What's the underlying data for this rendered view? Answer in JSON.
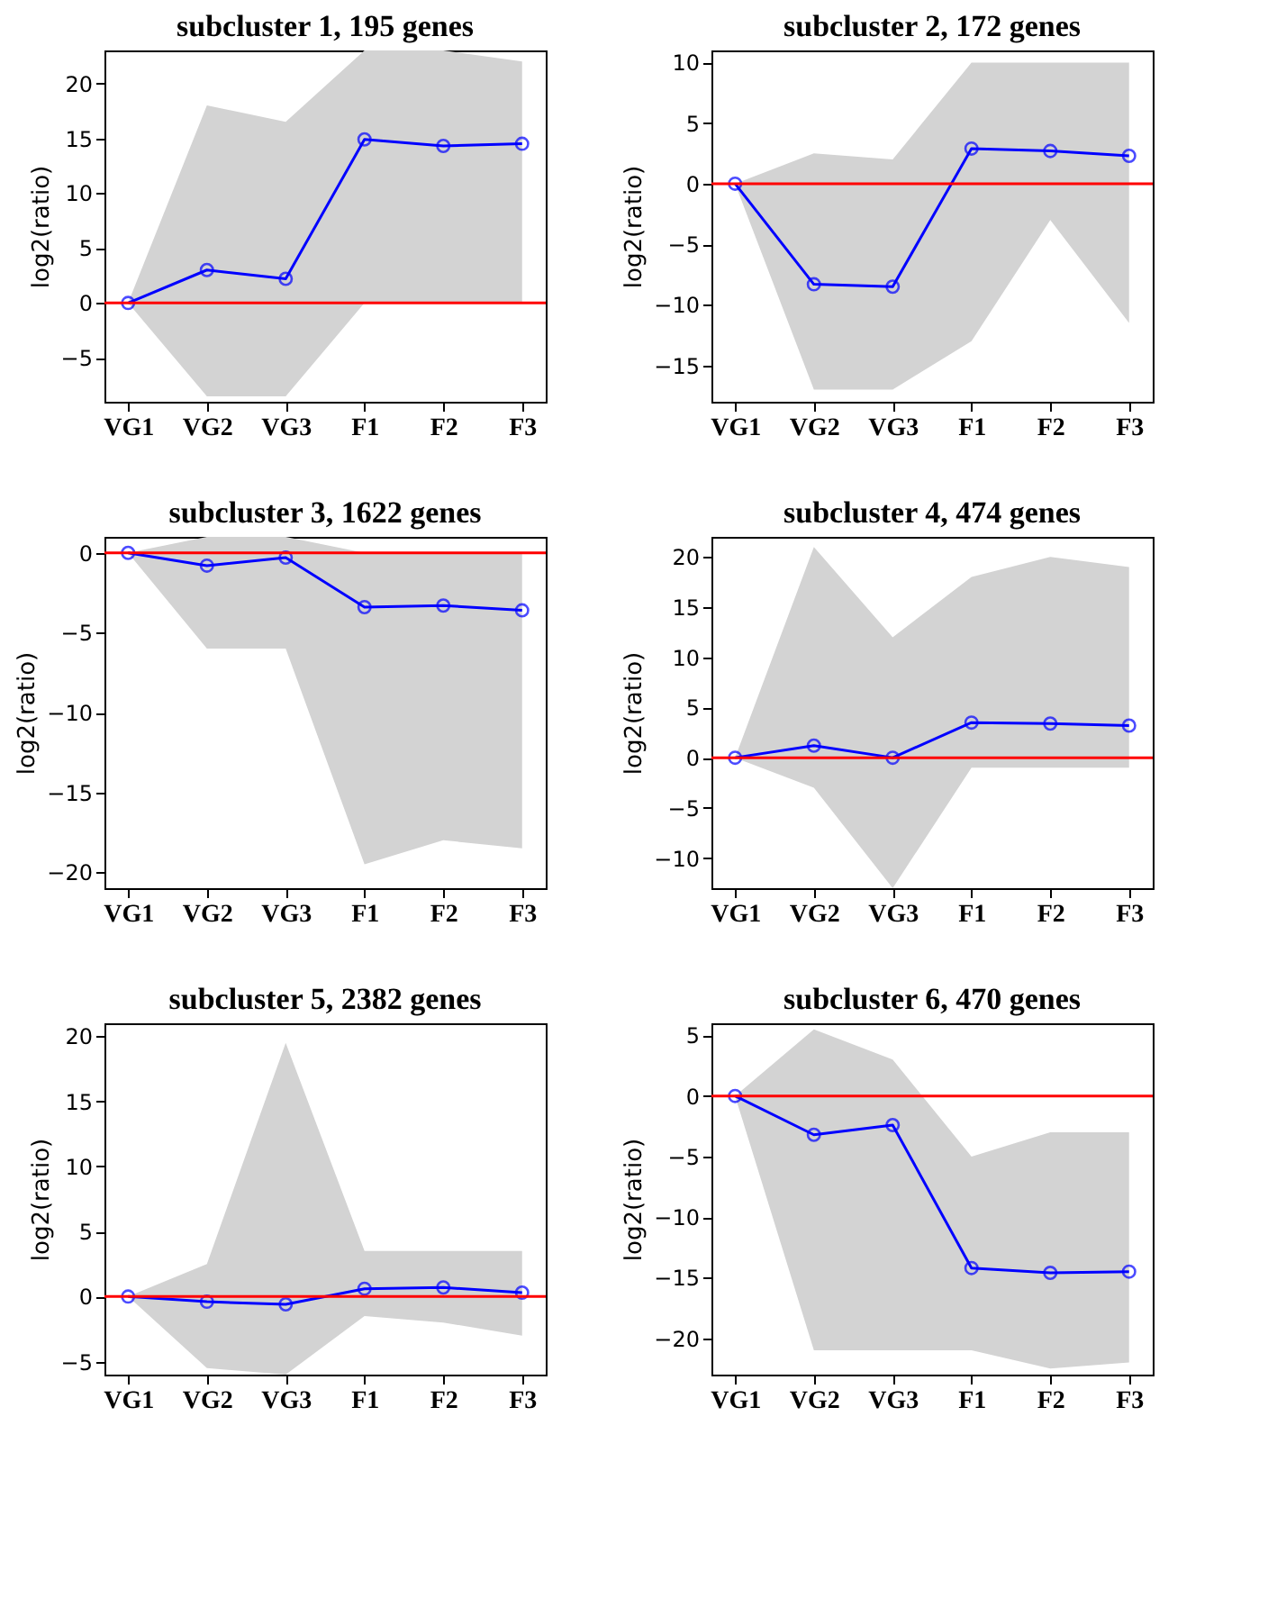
{
  "chart_data": [
    {
      "type": "line",
      "title": "subcluster 1, 195 genes",
      "ylabel": "log2(ratio)",
      "categories": [
        "VG1",
        "VG2",
        "VG3",
        "F1",
        "F2",
        "F3"
      ],
      "ylim": [
        -9,
        23
      ],
      "yticks": [
        -5,
        0,
        5,
        10,
        15,
        20
      ],
      "grid": false,
      "marker": "circle",
      "series": [
        {
          "color": "#0000ff",
          "values": [
            0,
            3,
            2.2,
            14.9,
            14.3,
            14.5
          ],
          "lower": [
            0,
            -8.5,
            -8.5,
            0,
            0,
            0
          ],
          "upper": [
            0,
            18,
            16.5,
            23,
            23,
            22
          ]
        }
      ],
      "ref_lines": [
        {
          "axis": "y",
          "value": 0,
          "color": "#ff0000"
        }
      ]
    },
    {
      "type": "line",
      "title": "subcluster 2, 172 genes",
      "ylabel": "log2(ratio)",
      "categories": [
        "VG1",
        "VG2",
        "VG3",
        "F1",
        "F2",
        "F3"
      ],
      "ylim": [
        -18,
        11
      ],
      "yticks": [
        -15,
        -10,
        -5,
        0,
        5,
        10
      ],
      "grid": false,
      "marker": "circle",
      "series": [
        {
          "color": "#0000ff",
          "values": [
            0,
            -8.3,
            -8.5,
            2.9,
            2.7,
            2.3
          ],
          "lower": [
            0,
            -17,
            -17,
            -13,
            -3,
            -11.5
          ],
          "upper": [
            0,
            2.5,
            2,
            10,
            10,
            10
          ]
        }
      ],
      "ref_lines": [
        {
          "axis": "y",
          "value": 0,
          "color": "#ff0000"
        }
      ]
    },
    {
      "type": "line",
      "title": "subcluster 3, 1622 genes",
      "ylabel": "log2(ratio)",
      "categories": [
        "VG1",
        "VG2",
        "VG3",
        "F1",
        "F2",
        "F3"
      ],
      "ylim": [
        -21,
        1
      ],
      "yticks": [
        -20,
        -15,
        -10,
        -5,
        0
      ],
      "grid": false,
      "marker": "circle",
      "series": [
        {
          "color": "#0000ff",
          "values": [
            0,
            -0.8,
            -0.3,
            -3.4,
            -3.3,
            -3.6
          ],
          "lower": [
            0,
            -6,
            -6,
            -19.5,
            -18,
            -18.5
          ],
          "upper": [
            0,
            1,
            1,
            0,
            0,
            0
          ]
        }
      ],
      "ref_lines": [
        {
          "axis": "y",
          "value": 0,
          "color": "#ff0000"
        }
      ]
    },
    {
      "type": "line",
      "title": "subcluster 4, 474 genes",
      "ylabel": "log2(ratio)",
      "categories": [
        "VG1",
        "VG2",
        "VG3",
        "F1",
        "F2",
        "F3"
      ],
      "ylim": [
        -13,
        22
      ],
      "yticks": [
        -10,
        -5,
        0,
        5,
        10,
        15,
        20
      ],
      "grid": false,
      "marker": "circle",
      "series": [
        {
          "color": "#0000ff",
          "values": [
            0,
            1.2,
            0,
            3.5,
            3.4,
            3.2
          ],
          "lower": [
            0,
            -3,
            -13,
            -1,
            -1,
            -1
          ],
          "upper": [
            0,
            21,
            12,
            18,
            20,
            19
          ]
        }
      ],
      "ref_lines": [
        {
          "axis": "y",
          "value": 0,
          "color": "#ff0000"
        }
      ]
    },
    {
      "type": "line",
      "title": "subcluster 5, 2382 genes",
      "ylabel": "log2(ratio)",
      "categories": [
        "VG1",
        "VG2",
        "VG3",
        "F1",
        "F2",
        "F3"
      ],
      "ylim": [
        -6,
        21
      ],
      "yticks": [
        -5,
        0,
        5,
        10,
        15,
        20
      ],
      "grid": false,
      "marker": "circle",
      "series": [
        {
          "color": "#0000ff",
          "values": [
            0,
            -0.4,
            -0.6,
            0.6,
            0.7,
            0.3
          ],
          "lower": [
            0,
            -5.5,
            -6,
            -1.5,
            -2,
            -3
          ],
          "upper": [
            0,
            2.5,
            19.5,
            3.5,
            3.5,
            3.5
          ]
        }
      ],
      "ref_lines": [
        {
          "axis": "y",
          "value": 0,
          "color": "#ff0000"
        }
      ]
    },
    {
      "type": "line",
      "title": "subcluster 6, 470 genes",
      "ylabel": "log2(ratio)",
      "categories": [
        "VG1",
        "VG2",
        "VG3",
        "F1",
        "F2",
        "F3"
      ],
      "ylim": [
        -23,
        6
      ],
      "yticks": [
        -20,
        -15,
        -10,
        -5,
        0,
        5
      ],
      "grid": false,
      "marker": "circle",
      "series": [
        {
          "color": "#0000ff",
          "values": [
            0,
            -3.2,
            -2.4,
            -14.2,
            -14.6,
            -14.5
          ],
          "lower": [
            0,
            -21,
            -21,
            -21,
            -22.5,
            -22
          ],
          "upper": [
            0,
            5.5,
            3,
            -5,
            -3,
            -3
          ]
        }
      ],
      "ref_lines": [
        {
          "axis": "y",
          "value": 0,
          "color": "#ff0000"
        }
      ]
    }
  ]
}
